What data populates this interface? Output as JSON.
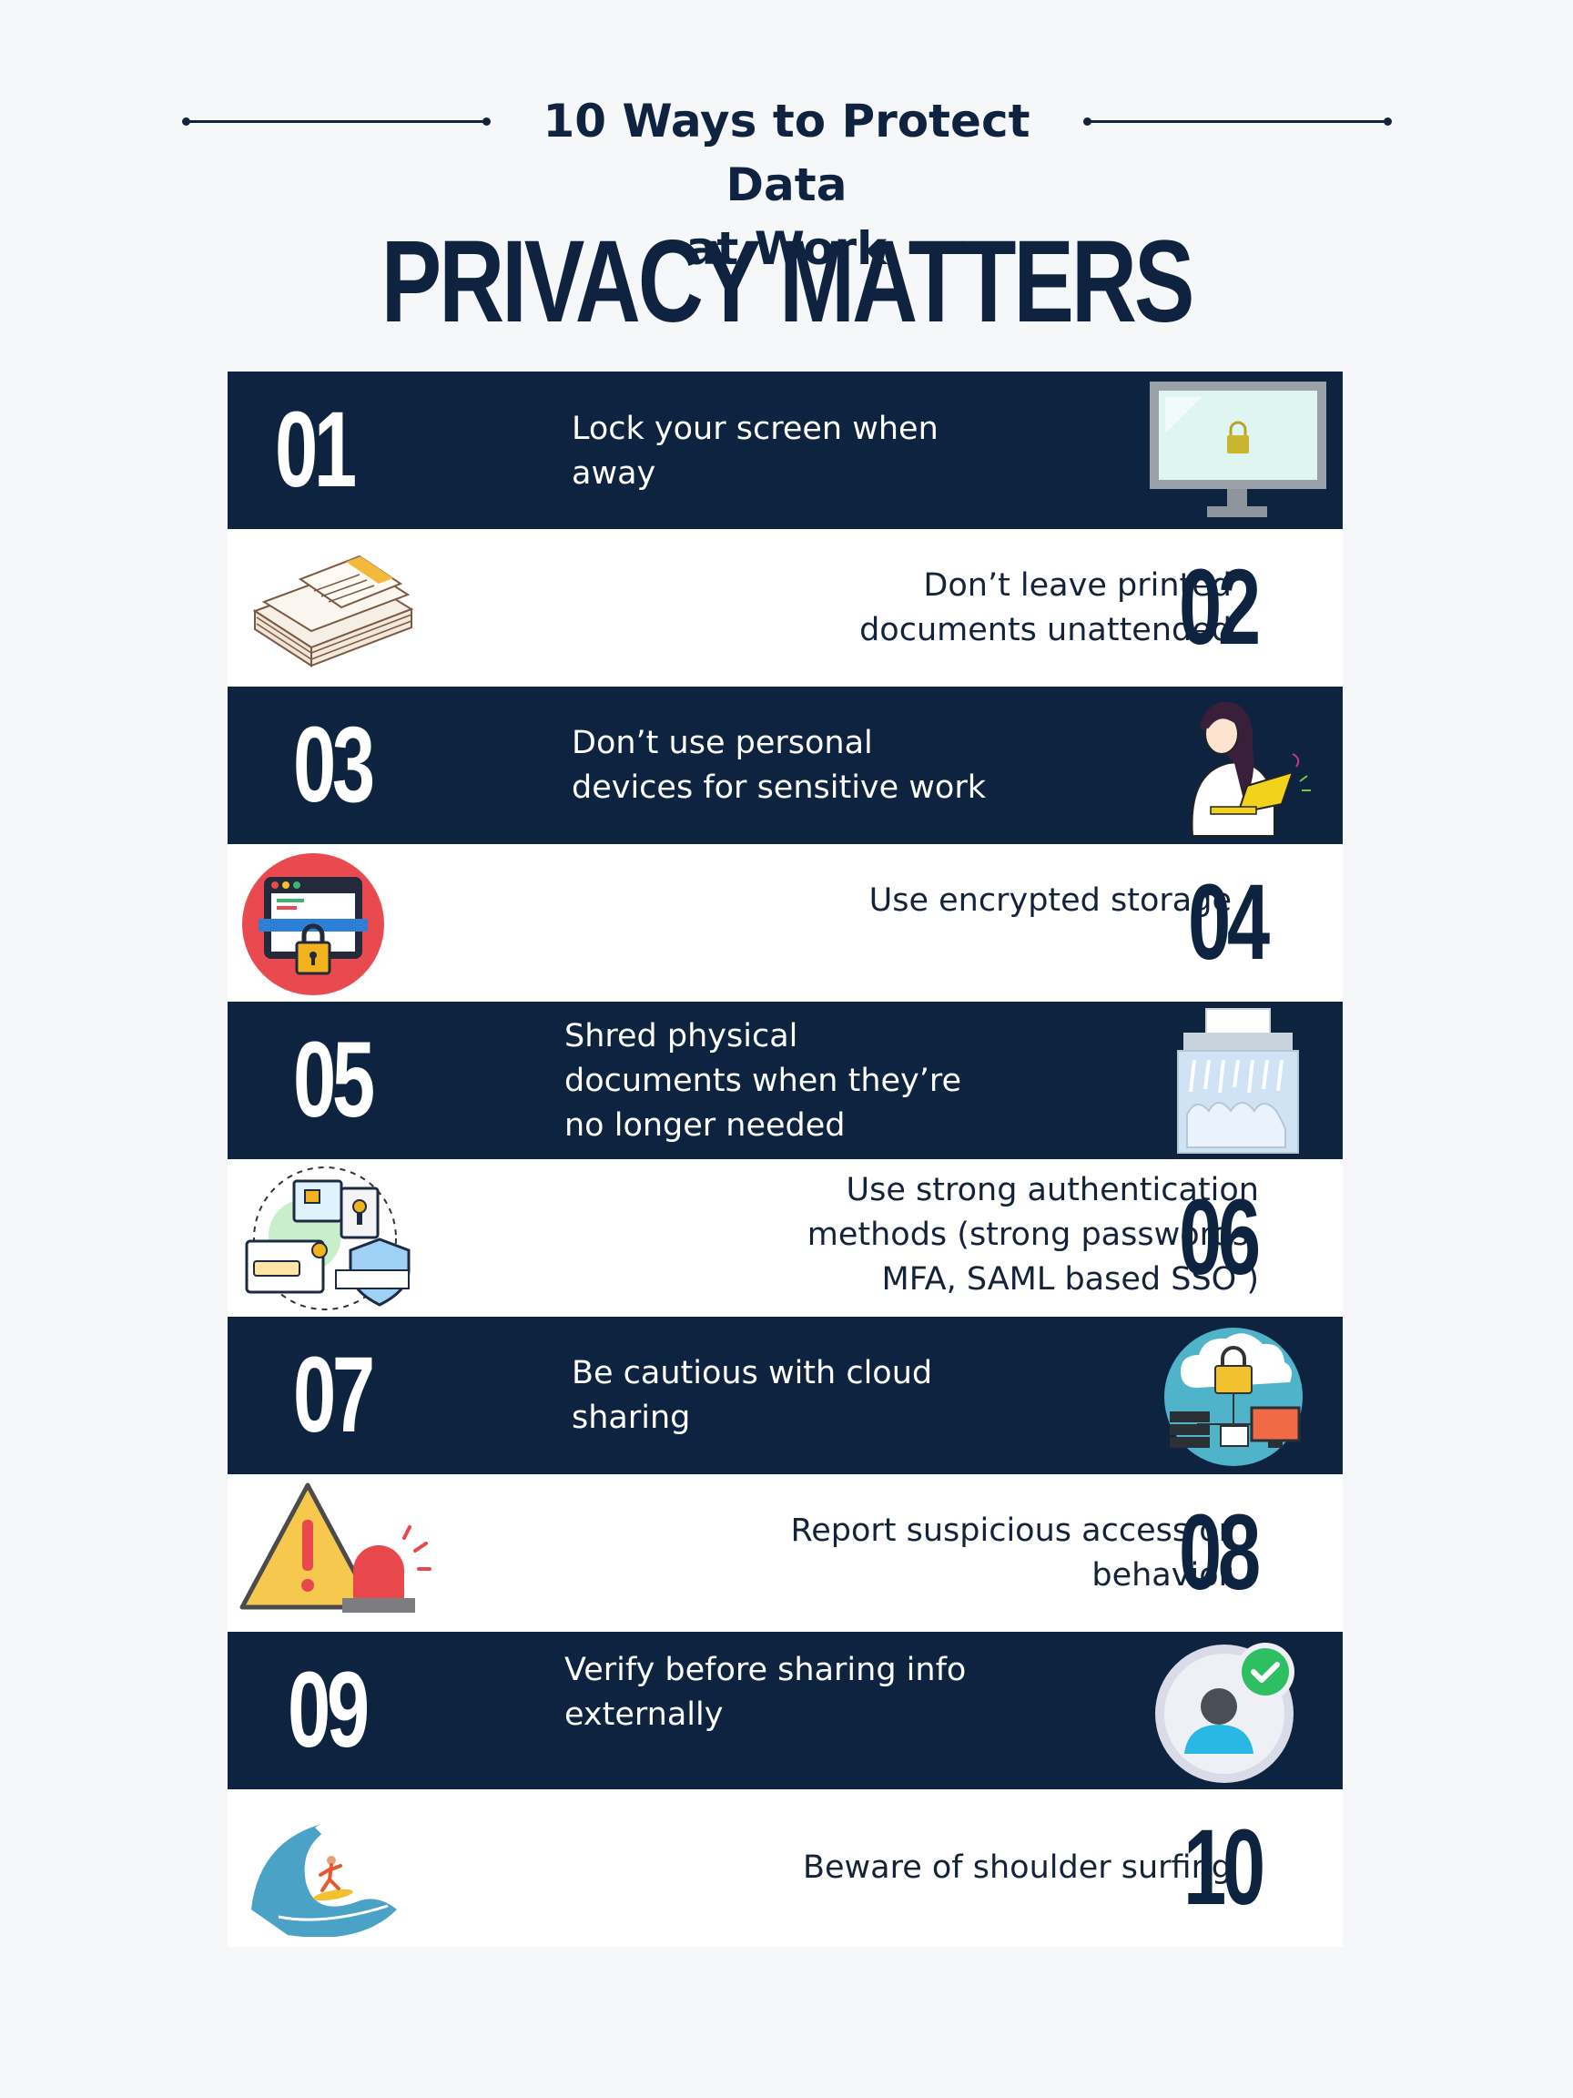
{
  "header": {
    "subtitle_line1": "10 Ways to Protect Data",
    "subtitle_line2": "at Work",
    "title": "PRIVACY MATTERS"
  },
  "items": [
    {
      "num": "01",
      "line1": "Lock your screen when",
      "line2": "away",
      "line3": "",
      "icon": "monitor-lock-icon"
    },
    {
      "num": "02",
      "line1": "Don’t leave printed",
      "line2": "documents unattended",
      "line3": "",
      "icon": "documents-stack-icon"
    },
    {
      "num": "03",
      "line1": "Don’t use personal",
      "line2": "devices for sensitive work",
      "line3": "",
      "icon": "woman-laptop-icon"
    },
    {
      "num": "04",
      "line1": "Use encrypted storage",
      "line2": "",
      "line3": "",
      "icon": "encrypted-browser-icon"
    },
    {
      "num": "05",
      "line1": "Shred physical",
      "line2": "documents when they’re",
      "line3": "no longer needed",
      "icon": "shredder-icon"
    },
    {
      "num": "06",
      "line1": "Use strong authentication",
      "line2": "methods (strong passwords,",
      "line3": "MFA, SAML based SSO )",
      "icon": "authentication-icon"
    },
    {
      "num": "07",
      "line1": "Be cautious with cloud",
      "line2": "sharing",
      "line3": "",
      "icon": "cloud-lock-icon"
    },
    {
      "num": "08",
      "line1": "Report suspicious access or",
      "line2": "behavior",
      "line3": "",
      "icon": "warning-alarm-icon"
    },
    {
      "num": "09",
      "line1": "Verify before sharing info",
      "line2": "externally",
      "line3": "",
      "icon": "verified-user-icon"
    },
    {
      "num": "10",
      "line1": "Beware of shoulder surfing",
      "line2": "",
      "line3": "",
      "icon": "wave-surfer-icon"
    }
  ],
  "colors": {
    "navy": "#0e2340",
    "white": "#ffffff",
    "background": "#f6f7f8"
  }
}
